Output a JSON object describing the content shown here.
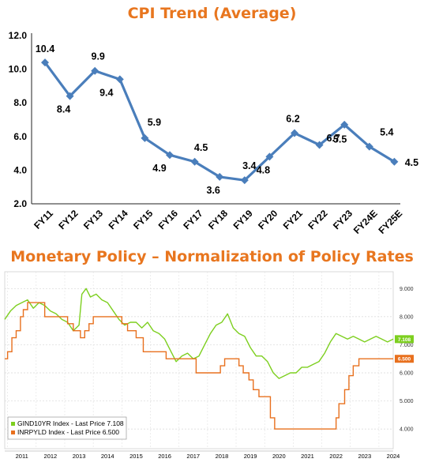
{
  "chart_data": [
    {
      "type": "line",
      "title": "CPI Trend (Average)",
      "categories": [
        "FY11",
        "FY12",
        "FY13",
        "FY14",
        "FY15",
        "FY16",
        "FY17",
        "FY18",
        "FY19",
        "FY20",
        "FY21",
        "FY22",
        "FY23",
        "FY24E",
        "FY25E"
      ],
      "values": [
        10.4,
        8.4,
        9.9,
        9.4,
        5.9,
        4.9,
        4.5,
        3.6,
        3.4,
        4.8,
        6.2,
        5.5,
        6.7,
        5.4,
        4.5
      ],
      "labels": [
        "10.4",
        "8.4",
        "9.9",
        "9.4",
        "5.9",
        "4.9",
        "4.5",
        "3.6",
        "3.4",
        "4.8",
        "6.2",
        "5.5",
        "6.7",
        "5.4",
        "4.5"
      ],
      "yticks": [
        "2.0",
        "4.0",
        "6.0",
        "8.0",
        "10.0",
        "12.0"
      ],
      "ylim": [
        2,
        12
      ],
      "grid": false,
      "colors": {
        "line": "#4a7ebb",
        "marker": "#4a7ebb"
      }
    },
    {
      "type": "line",
      "title": "Monetary Policy – Normalization of Policy Rates",
      "x_labels": [
        "2011",
        "2012",
        "2013",
        "2014",
        "2015",
        "2016",
        "2017",
        "2018",
        "2019",
        "2020",
        "2021",
        "2022",
        "2023",
        "2024"
      ],
      "yticks": [
        "4.000",
        "5.000",
        "6.000",
        "7.000",
        "8.000",
        "9.000"
      ],
      "ylim": [
        3.3,
        9.6
      ],
      "grid": true,
      "legend_position": "bottom-left",
      "series": [
        {
          "name": "GIND10YR Index - Last Price 7.108",
          "last_value_tag": "7.108",
          "color": "#7dcf1f",
          "x": [
            2010.9,
            2011.1,
            2011.3,
            2011.5,
            2011.7,
            2011.9,
            2012.1,
            2012.3,
            2012.5,
            2012.7,
            2012.9,
            2013.1,
            2013.3,
            2013.5,
            2013.6,
            2013.75,
            2013.9,
            2014.1,
            2014.3,
            2014.5,
            2014.7,
            2014.9,
            2015.1,
            2015.3,
            2015.5,
            2015.7,
            2015.9,
            2016.1,
            2016.3,
            2016.5,
            2016.7,
            2016.9,
            2017.1,
            2017.3,
            2017.5,
            2017.7,
            2017.9,
            2018.1,
            2018.3,
            2018.5,
            2018.7,
            2018.9,
            2019.1,
            2019.3,
            2019.5,
            2019.7,
            2019.9,
            2020.1,
            2020.3,
            2020.5,
            2020.7,
            2020.9,
            2021.1,
            2021.3,
            2021.5,
            2021.7,
            2021.9,
            2022.1,
            2022.3,
            2022.5,
            2022.7,
            2022.9,
            2023.1,
            2023.3,
            2023.5,
            2023.7,
            2023.9,
            2024.1,
            2024.3,
            2024.5
          ],
          "y": [
            7.9,
            8.2,
            8.4,
            8.5,
            8.6,
            8.3,
            8.5,
            8.4,
            8.2,
            8.1,
            7.9,
            7.8,
            7.5,
            7.7,
            8.8,
            9.0,
            8.7,
            8.8,
            8.6,
            8.5,
            8.2,
            7.9,
            7.7,
            7.8,
            7.8,
            7.6,
            7.8,
            7.5,
            7.4,
            7.2,
            6.8,
            6.4,
            6.6,
            6.7,
            6.5,
            6.6,
            7.0,
            7.4,
            7.7,
            7.8,
            8.1,
            7.6,
            7.4,
            7.3,
            6.9,
            6.6,
            6.6,
            6.4,
            6.0,
            5.8,
            5.9,
            6.0,
            6.0,
            6.2,
            6.2,
            6.3,
            6.4,
            6.7,
            7.1,
            7.4,
            7.3,
            7.2,
            7.3,
            7.2,
            7.1,
            7.2,
            7.3,
            7.2,
            7.1,
            7.2
          ]
        },
        {
          "name": "INRPYLD Index - Last Price 6.500",
          "last_value_tag": "6.500",
          "color": "#e8701e",
          "x": [
            2010.9,
            2011.0,
            2011.15,
            2011.3,
            2011.45,
            2011.55,
            2011.7,
            2011.85,
            2012.3,
            2012.45,
            2012.7,
            2013.1,
            2013.3,
            2013.55,
            2013.7,
            2013.85,
            2014.0,
            2014.8,
            2015.0,
            2015.2,
            2015.5,
            2015.75,
            2016.2,
            2016.55,
            2017.6,
            2018.45,
            2018.6,
            2019.1,
            2019.25,
            2019.45,
            2019.6,
            2019.8,
            2020.2,
            2020.35,
            2022.4,
            2022.5,
            2022.6,
            2022.8,
            2022.95,
            2023.1,
            2023.3,
            2024.5
          ],
          "y": [
            6.5,
            6.75,
            7.25,
            7.5,
            8.0,
            8.25,
            8.5,
            8.5,
            8.0,
            8.0,
            8.0,
            7.75,
            7.5,
            7.25,
            7.5,
            7.75,
            8.0,
            8.0,
            7.75,
            7.5,
            7.25,
            6.75,
            6.75,
            6.5,
            6.0,
            6.25,
            6.5,
            6.25,
            6.0,
            5.75,
            5.4,
            5.15,
            4.4,
            4.0,
            4.0,
            4.4,
            4.9,
            5.4,
            5.9,
            6.25,
            6.5,
            6.5
          ]
        }
      ]
    }
  ]
}
